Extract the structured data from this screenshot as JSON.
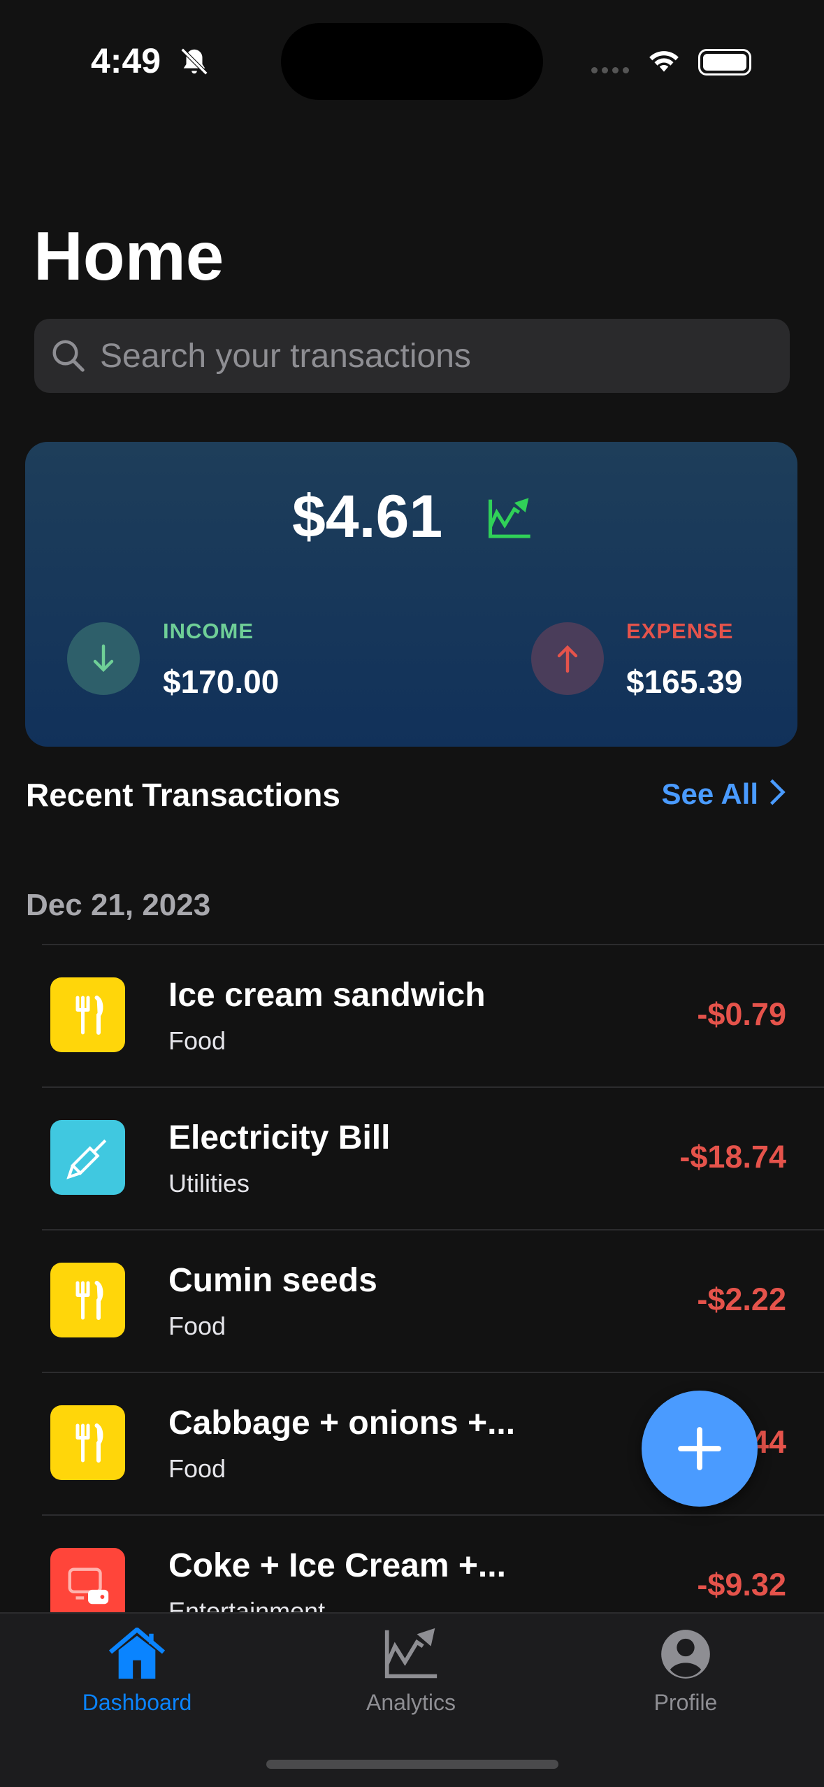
{
  "status_bar": {
    "time": "4:49"
  },
  "header": {
    "title": "Home"
  },
  "search": {
    "placeholder": "Search your transactions"
  },
  "summary": {
    "balance": "$4.61",
    "income_label": "INCOME",
    "income": "$170.00",
    "expense_label": "EXPENSE",
    "expense": "$165.39"
  },
  "recent": {
    "title": "Recent Transactions",
    "see_all": "See All"
  },
  "groups": [
    {
      "date": "Dec 21, 2023",
      "transactions": [
        {
          "name": "Ice cream sandwich",
          "category": "Food",
          "amount": "-$0.79",
          "icon": "fork-knife-icon",
          "color": "#ffd60a"
        },
        {
          "name": "Electricity Bill",
          "category": "Utilities",
          "amount": "-$18.74",
          "icon": "screwdriver-icon",
          "color": "#40c8e0"
        },
        {
          "name": "Cumin seeds",
          "category": "Food",
          "amount": "-$2.22",
          "icon": "fork-knife-icon",
          "color": "#ffd60a"
        },
        {
          "name": "Cabbage + onions +...",
          "category": "Food",
          "amount": "44",
          "icon": "fork-knife-icon",
          "color": "#ffd60a"
        },
        {
          "name": "Coke + Ice Cream +...",
          "category": "Entertainment",
          "amount": "-$9.32",
          "icon": "tv-game-icon",
          "color": "#ff453a"
        }
      ]
    }
  ],
  "tabs": [
    {
      "label": "Dashboard",
      "active": true
    },
    {
      "label": "Analytics"
    },
    {
      "label": "Profile"
    }
  ],
  "colors": {
    "accent": "#4a9bff",
    "income": "#6fcf97",
    "expense": "#e5534b",
    "background": "#121212"
  }
}
